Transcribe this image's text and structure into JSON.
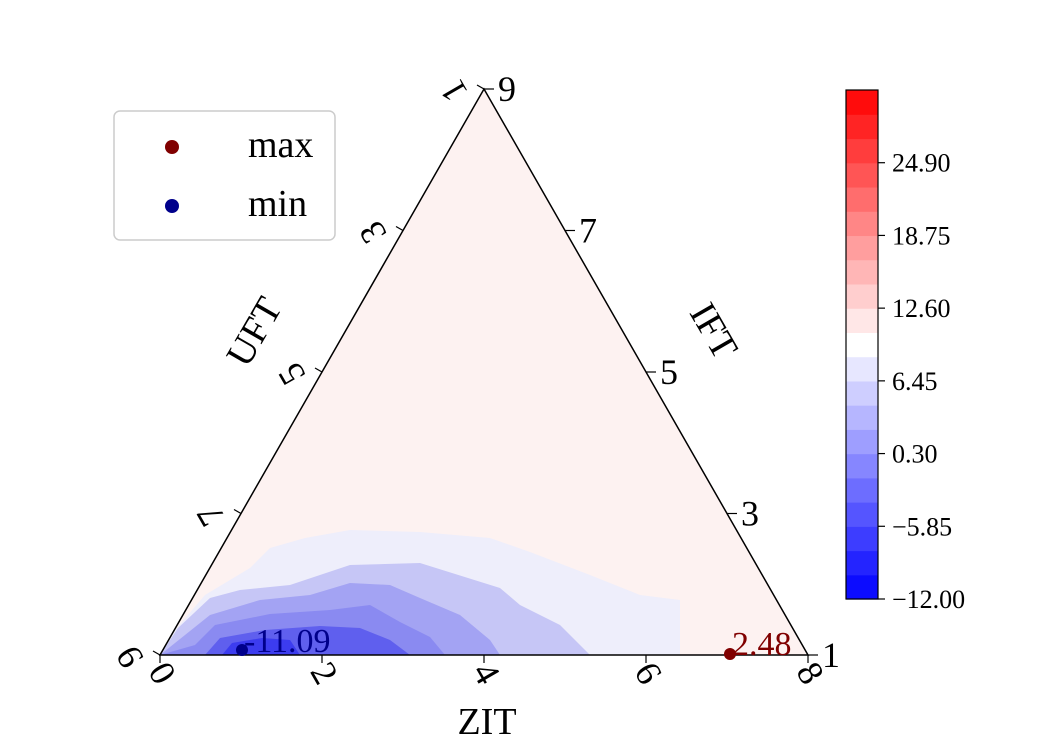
{
  "chart_data": {
    "type": "ternary-contour",
    "axes": {
      "bottom": {
        "label": "ZIT",
        "ticks": [
          "0",
          "2",
          "4",
          "6",
          "8"
        ]
      },
      "left": {
        "label": "UFT",
        "ticks": [
          "9",
          "7",
          "5",
          "3",
          "1"
        ]
      },
      "right": {
        "label": "IFT",
        "ticks": [
          "1",
          "3",
          "5",
          "7",
          "9"
        ]
      }
    },
    "colorbar": {
      "min": -12.0,
      "max": 31.05,
      "tick_labels": [
        "−12.00",
        "−5.85",
        "0.30",
        "6.45",
        "12.60",
        "18.75",
        "24.90"
      ],
      "tick_values": [
        -12.0,
        -5.85,
        0.3,
        6.45,
        12.6,
        18.75,
        24.9
      ],
      "levels": 21,
      "colormap": "bwr"
    },
    "legend": {
      "placement": "upper-left",
      "entries": [
        {
          "label": "max",
          "color": "#800000"
        },
        {
          "label": "min",
          "color": "#00008b"
        }
      ]
    },
    "annotations": [
      {
        "kind": "max",
        "text": "2.48",
        "value": 2.48,
        "ZIT": 7.0,
        "color": "#800000"
      },
      {
        "kind": "min",
        "text": "-11.09",
        "value": -11.09,
        "ZIT": 1.0,
        "color": "#00008b"
      }
    ],
    "grid": false
  }
}
